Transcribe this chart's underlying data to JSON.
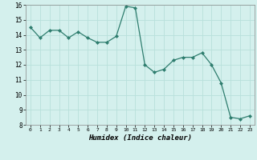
{
  "x": [
    0,
    1,
    2,
    3,
    4,
    5,
    6,
    7,
    8,
    9,
    10,
    11,
    12,
    13,
    14,
    15,
    16,
    17,
    18,
    19,
    20,
    21,
    22,
    23
  ],
  "y": [
    14.5,
    13.8,
    14.3,
    14.3,
    13.8,
    14.2,
    13.8,
    13.5,
    13.5,
    13.9,
    15.9,
    15.8,
    12.0,
    11.5,
    11.7,
    12.3,
    12.5,
    12.5,
    12.8,
    12.0,
    10.8,
    8.5,
    8.4,
    8.6
  ],
  "xlim": [
    -0.5,
    23.5
  ],
  "ylim": [
    8,
    16
  ],
  "yticks": [
    8,
    9,
    10,
    11,
    12,
    13,
    14,
    15,
    16
  ],
  "xticks": [
    0,
    1,
    2,
    3,
    4,
    5,
    6,
    7,
    8,
    9,
    10,
    11,
    12,
    13,
    14,
    15,
    16,
    17,
    18,
    19,
    20,
    21,
    22,
    23
  ],
  "xlabel": "Humidex (Indice chaleur)",
  "line_color": "#2e7d6e",
  "marker": "D",
  "marker_size": 2.0,
  "bg_color": "#d4f0ed",
  "grid_color": "#b8e0db",
  "title": ""
}
